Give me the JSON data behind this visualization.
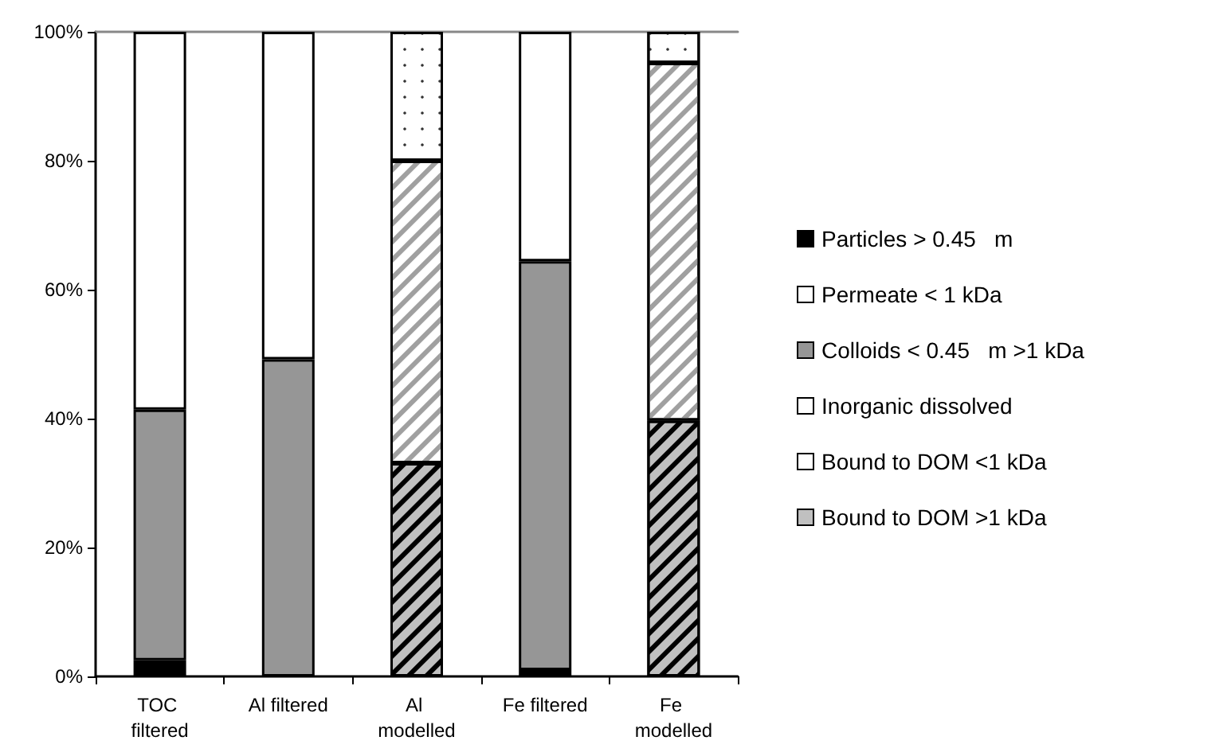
{
  "chart_data": {
    "type": "bar",
    "stacked": true,
    "categories": [
      "TOC filtered",
      "Al filtered",
      "Al modelled",
      "Fe filtered",
      "Fe modelled"
    ],
    "series": [
      {
        "name": "Particles > 0.45   m",
        "color": "#000000",
        "values": [
          2.5,
          null,
          null,
          1,
          null
        ]
      },
      {
        "name": "Colloids < 0.45   m >1 kDa",
        "color": "#969696",
        "values": [
          38.9,
          49.2,
          null,
          63.4,
          null
        ]
      },
      {
        "name": "Permeate < 1 kDa",
        "color": "#ffffff",
        "values": [
          58.6,
          50.8,
          null,
          35.6,
          null
        ]
      },
      {
        "name": "Bound to DOM >1 kDa",
        "color": "#c0c0c0",
        "values": [
          null,
          null,
          33.1,
          null,
          39.7
        ]
      },
      {
        "name": "Bound to DOM <1 kDa",
        "color": "#ffffff",
        "values": [
          null,
          null,
          46.9,
          null,
          55.5
        ]
      },
      {
        "name": "Inorganic dissolved",
        "color": "#ffffff",
        "values": [
          null,
          null,
          20,
          null,
          4.8
        ]
      }
    ],
    "ylim": [
      0,
      100
    ],
    "yticks": [
      {
        "value": 0,
        "label": "0%"
      },
      {
        "value": 20,
        "label": "20%"
      },
      {
        "value": 40,
        "label": "40%"
      },
      {
        "value": 60,
        "label": "60%"
      },
      {
        "value": 80,
        "label": "80%"
      },
      {
        "value": 100,
        "label": "100%"
      }
    ],
    "grid": false,
    "legend": "right"
  }
}
